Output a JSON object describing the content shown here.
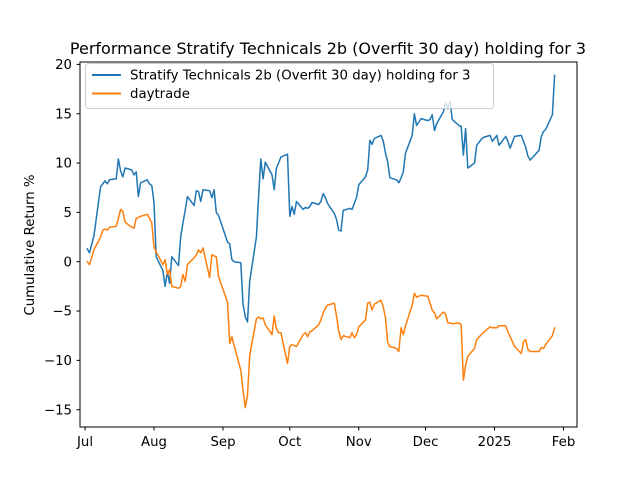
{
  "figure": {
    "title": "Performance Stratify Technicals 2b (Overfit 30 day) holding for 3",
    "ylabel": "Cumulative Return %"
  },
  "legend": {
    "position": "upper left",
    "entries": [
      {
        "label": "Stratify Technicals 2b (Overfit 30 day) holding for 3",
        "color": "#1f77b4"
      },
      {
        "label": "daytrade",
        "color": "#ff7f0e"
      }
    ]
  },
  "axes": {
    "x_tick_labels": [
      "Jul",
      "Aug",
      "Sep",
      "Oct",
      "Nov",
      "Dec",
      "2025",
      "Feb"
    ],
    "y_tick_labels": [
      "20",
      "15",
      "10",
      "5",
      "0",
      "−5",
      "−10",
      "−15"
    ],
    "y_tick_values": [
      20,
      15,
      10,
      5,
      0,
      -5,
      -10,
      -15
    ]
  },
  "chart_data": {
    "type": "line",
    "title": "Performance Stratify Technicals 2b (Overfit 30 day) holding for 3",
    "xlabel": "",
    "ylabel": "Cumulative Return %",
    "grid": false,
    "legend_position": "upper left",
    "ylim": [
      -16.7,
      20.3
    ],
    "x_range": [
      "2024-06-29",
      "2025-02-07"
    ],
    "x_tick_dates": [
      "2024-07-01",
      "2024-08-01",
      "2024-09-01",
      "2024-10-01",
      "2024-11-01",
      "2024-12-01",
      "2025-01-01",
      "2025-02-01"
    ],
    "x_tick_labels": [
      "Jul",
      "Aug",
      "Sep",
      "Oct",
      "Nov",
      "Dec",
      "2025",
      "Feb"
    ],
    "x": [
      "2024-07-02",
      "2024-07-03",
      "2024-07-05",
      "2024-07-08",
      "2024-07-09",
      "2024-07-10",
      "2024-07-11",
      "2024-07-12",
      "2024-07-15",
      "2024-07-16",
      "2024-07-17",
      "2024-07-18",
      "2024-07-19",
      "2024-07-22",
      "2024-07-23",
      "2024-07-24",
      "2024-07-25",
      "2024-07-26",
      "2024-07-29",
      "2024-07-30",
      "2024-07-31",
      "2024-08-01",
      "2024-08-02",
      "2024-08-05",
      "2024-08-06",
      "2024-08-07",
      "2024-08-08",
      "2024-08-09",
      "2024-08-12",
      "2024-08-13",
      "2024-08-14",
      "2024-08-15",
      "2024-08-16",
      "2024-08-19",
      "2024-08-20",
      "2024-08-21",
      "2024-08-22",
      "2024-08-23",
      "2024-08-26",
      "2024-08-27",
      "2024-08-28",
      "2024-08-29",
      "2024-08-30",
      "2024-09-03",
      "2024-09-04",
      "2024-09-05",
      "2024-09-06",
      "2024-09-09",
      "2024-09-10",
      "2024-09-11",
      "2024-09-12",
      "2024-09-13",
      "2024-09-16",
      "2024-09-17",
      "2024-09-18",
      "2024-09-19",
      "2024-09-20",
      "2024-09-23",
      "2024-09-24",
      "2024-09-25",
      "2024-09-26",
      "2024-09-27",
      "2024-09-30",
      "2024-10-01",
      "2024-10-02",
      "2024-10-03",
      "2024-10-04",
      "2024-10-07",
      "2024-10-08",
      "2024-10-09",
      "2024-10-10",
      "2024-10-11",
      "2024-10-14",
      "2024-10-15",
      "2024-10-16",
      "2024-10-17",
      "2024-10-18",
      "2024-10-21",
      "2024-10-22",
      "2024-10-23",
      "2024-10-24",
      "2024-10-25",
      "2024-10-28",
      "2024-10-29",
      "2024-10-30",
      "2024-10-31",
      "2024-11-01",
      "2024-11-04",
      "2024-11-05",
      "2024-11-06",
      "2024-11-07",
      "2024-11-08",
      "2024-11-11",
      "2024-11-12",
      "2024-11-13",
      "2024-11-14",
      "2024-11-15",
      "2024-11-18",
      "2024-11-19",
      "2024-11-20",
      "2024-11-21",
      "2024-11-22",
      "2024-11-25",
      "2024-11-26",
      "2024-11-27",
      "2024-11-29",
      "2024-12-02",
      "2024-12-03",
      "2024-12-04",
      "2024-12-05",
      "2024-12-06",
      "2024-12-09",
      "2024-12-10",
      "2024-12-11",
      "2024-12-12",
      "2024-12-13",
      "2024-12-16",
      "2024-12-17",
      "2024-12-18",
      "2024-12-19",
      "2024-12-20",
      "2024-12-23",
      "2024-12-24",
      "2024-12-26",
      "2024-12-27",
      "2024-12-30",
      "2024-12-31",
      "2025-01-02",
      "2025-01-03",
      "2025-01-06",
      "2025-01-07",
      "2025-01-08",
      "2025-01-10",
      "2025-01-13",
      "2025-01-14",
      "2025-01-15",
      "2025-01-16",
      "2025-01-17",
      "2025-01-21",
      "2025-01-22",
      "2025-01-23",
      "2025-01-24",
      "2025-01-27",
      "2025-01-28"
    ],
    "series": [
      {
        "name": "Stratify Technicals 2b (Overfit 30 day) holding for 3",
        "color": "#1f77b4",
        "values": [
          1.3,
          0.9,
          2.6,
          7.6,
          7.9,
          8.2,
          7.9,
          8.3,
          8.4,
          10.4,
          9.2,
          8.6,
          9.5,
          9.3,
          8.8,
          9.1,
          6.6,
          8.0,
          8.3,
          7.9,
          7.7,
          6.0,
          0.5,
          -0.9,
          -2.5,
          -1.0,
          -2.2,
          0.5,
          -0.4,
          2.5,
          3.9,
          5.2,
          6.6,
          5.7,
          7.2,
          7.1,
          6.1,
          7.3,
          7.2,
          6.5,
          7.3,
          5.0,
          4.7,
          2.0,
          1.8,
          0.2,
          0.0,
          -0.1,
          -4.3,
          -5.6,
          -6.1,
          -2.0,
          2.5,
          6.6,
          10.4,
          8.4,
          10.1,
          8.8,
          7.3,
          9.5,
          10.0,
          10.6,
          10.9,
          4.6,
          5.6,
          4.8,
          6.1,
          5.3,
          5.5,
          5.4,
          5.6,
          6.0,
          5.8,
          6.1,
          6.9,
          6.5,
          5.9,
          4.9,
          4.3,
          3.2,
          3.1,
          5.2,
          5.4,
          5.3,
          5.9,
          6.5,
          7.8,
          8.6,
          9.3,
          12.3,
          11.9,
          12.5,
          12.8,
          12.2,
          11.0,
          10.1,
          8.5,
          8.3,
          8.0,
          8.5,
          9.1,
          11.0,
          12.8,
          15.0,
          13.8,
          14.5,
          14.3,
          14.4,
          14.9,
          13.3,
          14.0,
          15.2,
          16.1,
          15.5,
          16.3,
          14.4,
          13.8,
          13.7,
          10.8,
          13.5,
          9.5,
          10.0,
          11.8,
          12.4,
          12.6,
          12.8,
          12.2,
          12.8,
          11.8,
          12.7,
          12.2,
          11.5,
          12.7,
          12.8,
          12.2,
          11.6,
          10.7,
          10.3,
          11.3,
          12.7,
          13.2,
          13.4,
          14.9,
          18.9
        ]
      },
      {
        "name": "daytrade",
        "color": "#ff7f0e",
        "values": [
          0.0,
          -0.3,
          1.2,
          2.5,
          3.2,
          3.3,
          3.2,
          3.5,
          3.6,
          4.4,
          5.3,
          5.1,
          4.0,
          3.5,
          3.4,
          4.4,
          4.5,
          4.6,
          4.8,
          4.4,
          3.9,
          1.5,
          1.0,
          -0.3,
          0.2,
          -1.3,
          -0.8,
          -2.5,
          -2.7,
          -2.5,
          -1.3,
          -2.0,
          -0.3,
          0.4,
          0.7,
          1.2,
          0.9,
          1.4,
          -1.6,
          0.7,
          0.6,
          0.5,
          -1.5,
          -4.1,
          -8.3,
          -7.6,
          -8.5,
          -11.0,
          -13.0,
          -14.8,
          -13.5,
          -9.5,
          -5.8,
          -5.6,
          -5.8,
          -5.7,
          -6.4,
          -7.4,
          -5.5,
          -6.8,
          -7.2,
          -7.2,
          -10.3,
          -8.6,
          -8.4,
          -8.5,
          -8.6,
          -7.4,
          -7.2,
          -7.6,
          -7.1,
          -7.0,
          -6.4,
          -5.9,
          -5.2,
          -4.7,
          -4.4,
          -4.2,
          -5.5,
          -7.0,
          -7.9,
          -7.5,
          -7.7,
          -7.2,
          -7.7,
          -7.4,
          -6.6,
          -5.9,
          -4.2,
          -4.1,
          -4.9,
          -4.3,
          -3.9,
          -4.6,
          -5.7,
          -8.2,
          -8.6,
          -8.8,
          -9.1,
          -6.7,
          -7.4,
          -6.5,
          -4.4,
          -3.2,
          -3.6,
          -3.4,
          -3.5,
          -4.2,
          -4.9,
          -5.2,
          -5.8,
          -5.1,
          -5.3,
          -6.2,
          -6.2,
          -6.3,
          -6.2,
          -6.4,
          -12.0,
          -10.5,
          -9.6,
          -8.8,
          -7.9,
          -7.4,
          -7.2,
          -6.6,
          -6.7,
          -6.7,
          -6.5,
          -6.5,
          -7.1,
          -7.6,
          -8.6,
          -9.3,
          -8.1,
          -7.9,
          -8.9,
          -9.1,
          -9.1,
          -8.7,
          -8.8,
          -8.4,
          -7.5,
          -6.7
        ]
      }
    ]
  }
}
